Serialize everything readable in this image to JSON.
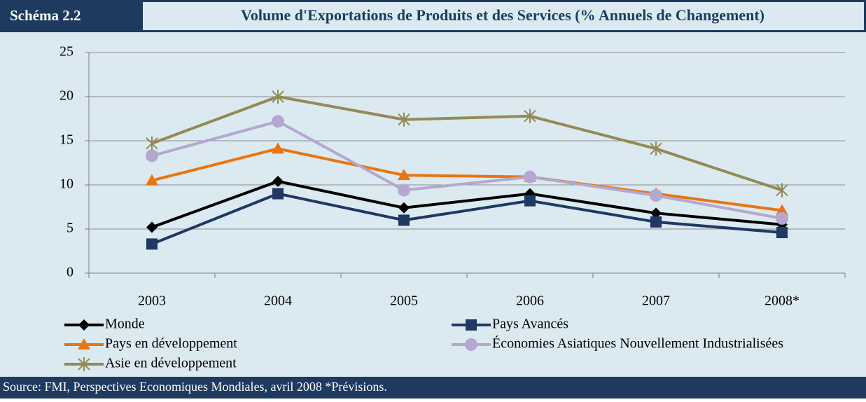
{
  "figure_label": "Schéma 2.2",
  "chart_data": {
    "type": "line",
    "title": "Volume d'Exportations de Produits et des Services (% Annuels de Changement)",
    "source": "Source: FMI, Perspectives Economiques Mondiales, avril 2008 *Prévisions.",
    "categories": [
      "2003",
      "2004",
      "2005",
      "2006",
      "2007",
      "2008*"
    ],
    "ylim": [
      0,
      25
    ],
    "yticks": [
      0,
      5,
      10,
      15,
      20,
      25
    ],
    "grid": true,
    "series": [
      {
        "name": "Monde",
        "color": "#000000",
        "marker": "diamond",
        "values": [
          5.2,
          10.4,
          7.4,
          9.0,
          6.8,
          5.5
        ]
      },
      {
        "name": "Pays Avancés",
        "color": "#1f3864",
        "marker": "square",
        "values": [
          3.3,
          9.0,
          6.0,
          8.2,
          5.8,
          4.6
        ]
      },
      {
        "name": "Pays en développement",
        "color": "#e97510",
        "marker": "triangle",
        "values": [
          10.5,
          14.1,
          11.1,
          10.9,
          9.0,
          7.1
        ]
      },
      {
        "name": "Économies Asiatiques Nouvellement Industrialisées",
        "color": "#b4a7d0",
        "marker": "circle",
        "values": [
          13.3,
          17.2,
          9.4,
          10.9,
          8.8,
          6.2
        ]
      },
      {
        "name": "Asie en développement",
        "color": "#948a54",
        "marker": "star",
        "values": [
          14.7,
          20.0,
          17.4,
          17.8,
          14.1,
          9.4
        ]
      }
    ]
  }
}
